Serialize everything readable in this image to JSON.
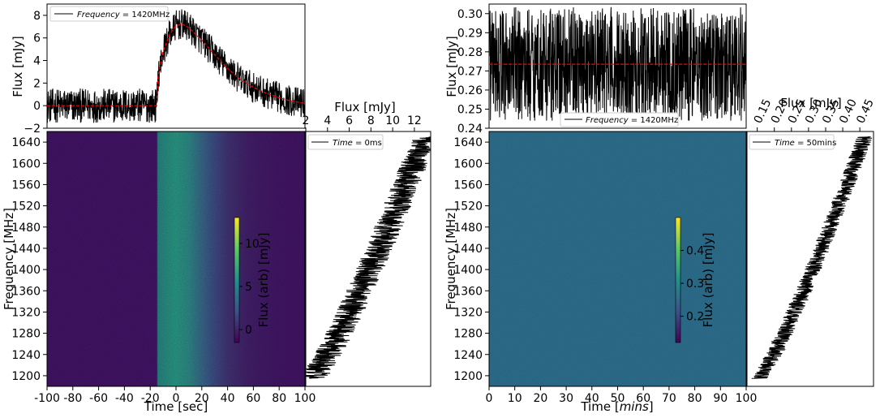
{
  "chart_data": [
    {
      "id": "left-top",
      "type": "line",
      "xlim": [
        -100,
        100
      ],
      "ylim": [
        -2,
        9
      ],
      "yticks": [
        -2,
        0,
        2,
        4,
        6,
        8
      ],
      "ylabel": "Flux [mJy]",
      "legend": "Frequency = 1420MHz",
      "model": {
        "x": [
          -100,
          -15,
          -14,
          -10,
          -5,
          0,
          5,
          10,
          20,
          30,
          40,
          50,
          60,
          70,
          80,
          90,
          100
        ],
        "y": [
          0,
          0,
          2.5,
          4.8,
          6.3,
          7.1,
          7.2,
          6.9,
          5.8,
          4.5,
          3.3,
          2.3,
          1.6,
          1.1,
          0.7,
          0.4,
          0.2
        ]
      },
      "noise_amplitude": 0.8
    },
    {
      "id": "left-heatmap",
      "type": "heatmap",
      "xlim": [
        -100,
        100
      ],
      "xticks": [
        -100,
        -80,
        -60,
        -40,
        -20,
        0,
        20,
        40,
        60,
        80,
        100
      ],
      "xlabel": "Time [sec]",
      "ylim": [
        1180,
        1660
      ],
      "yticks": [
        1200,
        1240,
        1280,
        1320,
        1360,
        1400,
        1440,
        1480,
        1520,
        1560,
        1600,
        1640
      ],
      "ylabel": "Frequency [MHz]",
      "colorbar": {
        "label": "Flux (arb) [mJy]",
        "ticks": [
          0,
          5,
          10
        ],
        "range": [
          -1.5,
          13
        ]
      }
    },
    {
      "id": "left-spectrum",
      "type": "line",
      "xlim": [
        2,
        13.5
      ],
      "xticks": [
        2,
        4,
        6,
        8,
        10,
        12
      ],
      "xlabel": "Flux [mJy]",
      "ylim": [
        1180,
        1660
      ],
      "legend": "Time = 0ms",
      "trend": {
        "freq": [
          1195,
          1650
        ],
        "flux": [
          2.6,
          13.0
        ]
      },
      "noise_amplitude": 1.3
    },
    {
      "id": "right-top",
      "type": "line",
      "xlim": [
        0,
        100
      ],
      "ylim": [
        0.24,
        0.305
      ],
      "yticks": [
        0.24,
        0.25,
        0.26,
        0.27,
        0.28,
        0.29,
        0.3
      ],
      "ylabel": "Flux [mJy]",
      "legend": "Frequency = 1420MHz",
      "model": {
        "x": [
          0,
          100
        ],
        "y": [
          0.2735,
          0.2735
        ]
      },
      "noise_amplitude": 0.03
    },
    {
      "id": "right-heatmap",
      "type": "heatmap",
      "xlim": [
        0,
        100
      ],
      "xticks": [
        0,
        10,
        20,
        30,
        40,
        50,
        60,
        70,
        80,
        90,
        100
      ],
      "xlabel": "Time [mins]",
      "ylim": [
        1180,
        1660
      ],
      "yticks": [
        1200,
        1240,
        1280,
        1320,
        1360,
        1400,
        1440,
        1480,
        1520,
        1560,
        1600,
        1640
      ],
      "ylabel": "Frequency [MHz]",
      "colorbar": {
        "label": "Flux (arb) [mJy]",
        "ticks": [
          0.2,
          0.3,
          0.4
        ],
        "range": [
          0.12,
          0.5
        ]
      }
    },
    {
      "id": "right-spectrum",
      "type": "line",
      "xlim": [
        0.12,
        0.49
      ],
      "xticks": [
        0.15,
        0.2,
        0.25,
        0.3,
        0.35,
        0.4,
        0.45
      ],
      "xlabel": "Flux [mJy]",
      "ylim": [
        1180,
        1660
      ],
      "legend": "Time = 50mins",
      "trend": {
        "freq": [
          1195,
          1650
        ],
        "flux": [
          0.155,
          0.465
        ]
      },
      "noise_amplitude": 0.025
    }
  ],
  "text": {
    "left_top_ylabel": "Flux [mJy]",
    "left_top_legend_var": "Frequency",
    "left_top_legend_val": " = 1420MHz",
    "left_heat_xlabel": "Time [sec]",
    "left_heat_ylabel": "Frequency [MHz]",
    "left_cbar_label": "Flux (arb) [mJy]",
    "left_spec_xlabel": "Flux [mJy]",
    "left_spec_legend_var": "Time",
    "left_spec_legend_val": " = 0ms",
    "right_top_ylabel": "Flux [mJy]",
    "right_top_legend_var": "Frequency",
    "right_top_legend_val": " = 1420MHz",
    "right_heat_xlabel_pre": "Time [",
    "right_heat_xlabel_unit": "mins",
    "right_heat_xlabel_post": "]",
    "right_heat_ylabel": "Frequency [MHz]",
    "right_cbar_label": "Flux (arb) [mJy]",
    "right_spec_xlabel": "Flux [mJy]",
    "right_spec_legend_var": "Time",
    "right_spec_legend_val": " = 50mins"
  },
  "colors": {
    "series": "#000000",
    "model": "#ff0000",
    "heat_base_left": "#45146b",
    "heat_burst_left": "#2aa08a",
    "heat_base_right": "#2d6f8e",
    "axes": "#000000"
  }
}
